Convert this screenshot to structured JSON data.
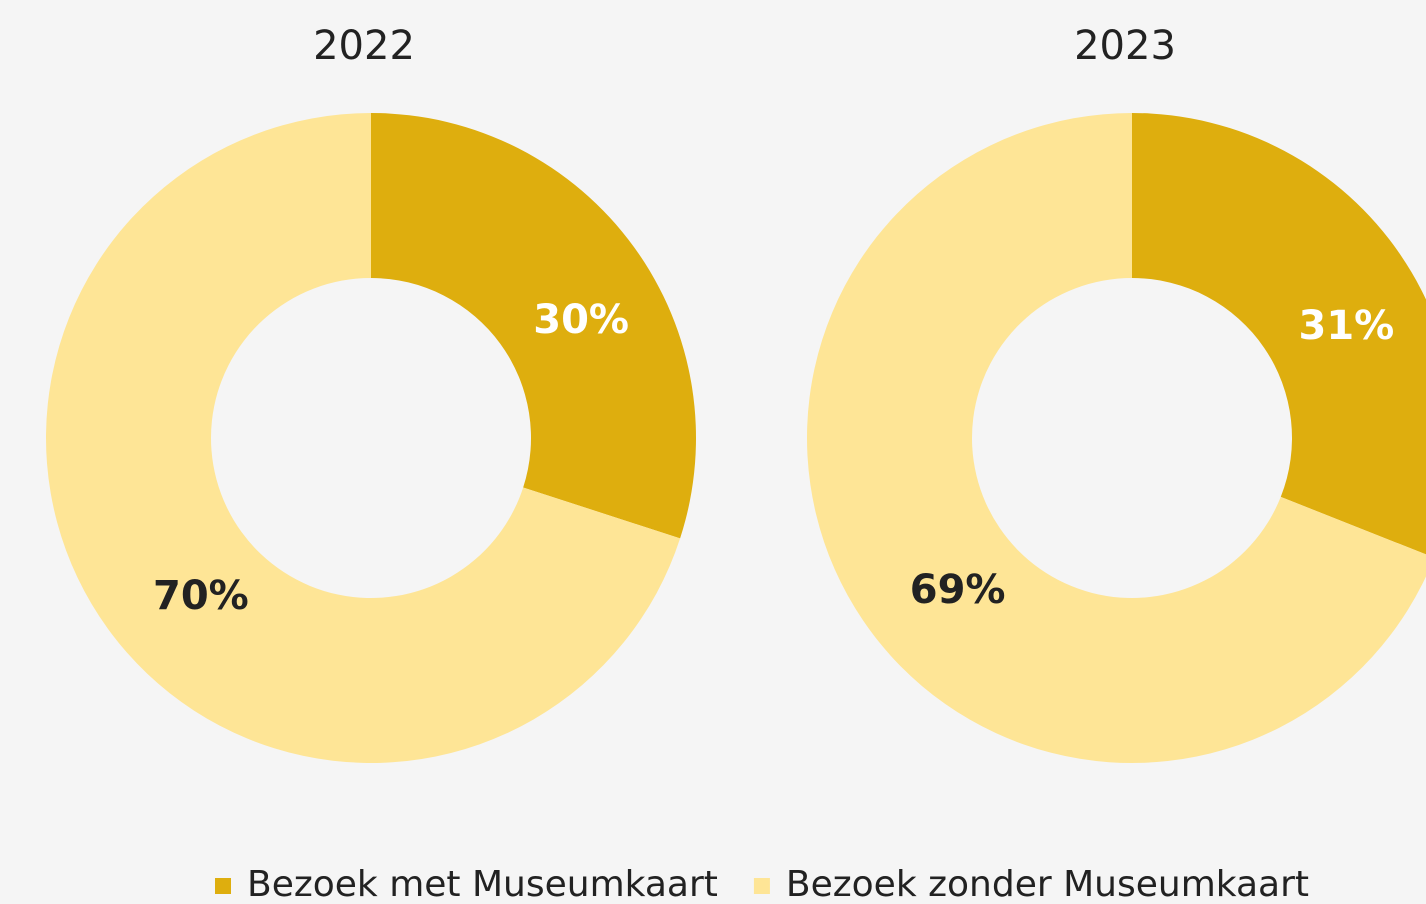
{
  "chart_data": [
    {
      "type": "donut",
      "title": "2022",
      "values": [
        30,
        70
      ],
      "value_labels": [
        "30%",
        "70%"
      ]
    },
    {
      "type": "donut",
      "title": "2023",
      "values": [
        31,
        69
      ],
      "value_labels": [
        "31%",
        "69%"
      ]
    }
  ],
  "legend": {
    "labels": [
      "Bezoek met Museumkaart",
      "Bezoek zonder Museumkaart"
    ],
    "colors": [
      "#deae0e",
      "#fee596"
    ]
  }
}
